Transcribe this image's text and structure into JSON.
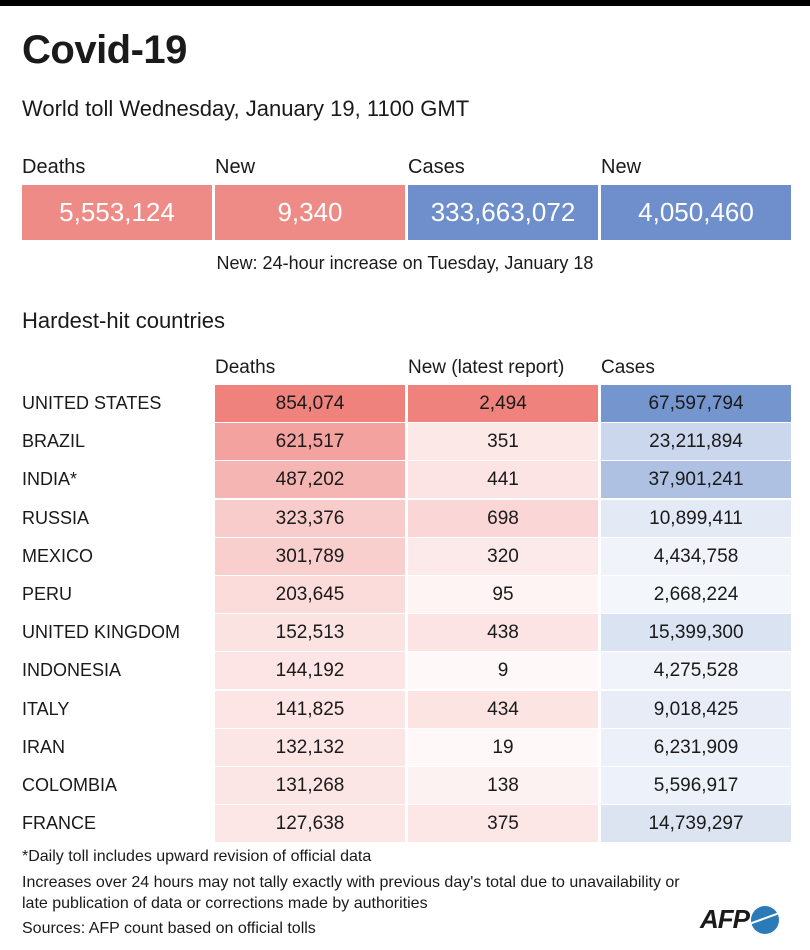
{
  "title": "Covid-19",
  "subtitle": "World toll Wednesday, January 19, 1100 GMT",
  "totals": [
    {
      "label": "Deaths",
      "value": "5,553,124",
      "color": "#ef8b86"
    },
    {
      "label": "New",
      "value": "9,340",
      "color": "#ef8b86"
    },
    {
      "label": "Cases",
      "value": "333,663,072",
      "color": "#6e8fcb"
    },
    {
      "label": "New",
      "value": "4,050,460",
      "color": "#6e8fcb"
    }
  ],
  "totals_note": "New: 24-hour increase on Tuesday, January 18",
  "section_title": "Hardest-hit countries",
  "chart_data": {
    "type": "table",
    "title": "Hardest-hit countries",
    "columns": [
      "Deaths",
      "New (latest report)",
      "Cases"
    ],
    "rows": [
      {
        "country": "UNITED STATES",
        "deaths": "854,074",
        "new": "2,494",
        "cases": "67,597,794"
      },
      {
        "country": "BRAZIL",
        "deaths": "621,517",
        "new": "351",
        "cases": "23,211,894"
      },
      {
        "country": "INDIA*",
        "deaths": "487,202",
        "new": "441",
        "cases": "37,901,241"
      },
      {
        "country": "RUSSIA",
        "deaths": "323,376",
        "new": "698",
        "cases": "10,899,411"
      },
      {
        "country": "MEXICO",
        "deaths": "301,789",
        "new": "320",
        "cases": "4,434,758"
      },
      {
        "country": "PERU",
        "deaths": "203,645",
        "new": "95",
        "cases": "2,668,224"
      },
      {
        "country": "UNITED KINGDOM",
        "deaths": "152,513",
        "new": "438",
        "cases": "15,399,300"
      },
      {
        "country": "INDONESIA",
        "deaths": "144,192",
        "new": "9",
        "cases": "4,275,528"
      },
      {
        "country": "ITALY",
        "deaths": "141,825",
        "new": "434",
        "cases": "9,018,425"
      },
      {
        "country": "IRAN",
        "deaths": "132,132",
        "new": "19",
        "cases": "6,231,909"
      },
      {
        "country": "COLOMBIA",
        "deaths": "131,268",
        "new": "138",
        "cases": "5,596,917"
      },
      {
        "country": "FRANCE",
        "deaths": "127,638",
        "new": "375",
        "cases": "14,739,297"
      }
    ],
    "colors": {
      "red": "#ee7b76",
      "blue": "#6e8fcb"
    }
  },
  "footnotes": [
    "*Daily toll includes upward revision of official data",
    "Increases over 24 hours may not tally exactly with previous day's total due to unavailability or late publication of data or corrections made by authorities",
    "Sources: AFP count based on official tolls"
  ],
  "logo": "AFP"
}
